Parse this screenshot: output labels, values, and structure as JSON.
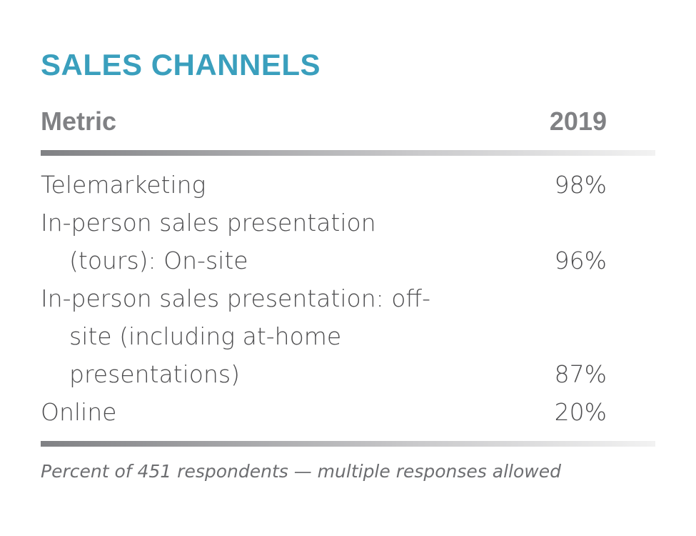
{
  "title": "SALES CHANNELS",
  "table": {
    "header": [
      "Metric",
      "2019"
    ],
    "rows": [
      [
        "Telemarketing",
        "98%"
      ],
      [
        "In-person sales presentation (tours): On-site",
        "96%"
      ],
      [
        "In-person sales presentation: off-site (including at-home presentations)",
        "87%"
      ],
      [
        "Online",
        "20%"
      ]
    ]
  },
  "footnote": "Percent of 451 respondents — multiple responses allowed"
}
